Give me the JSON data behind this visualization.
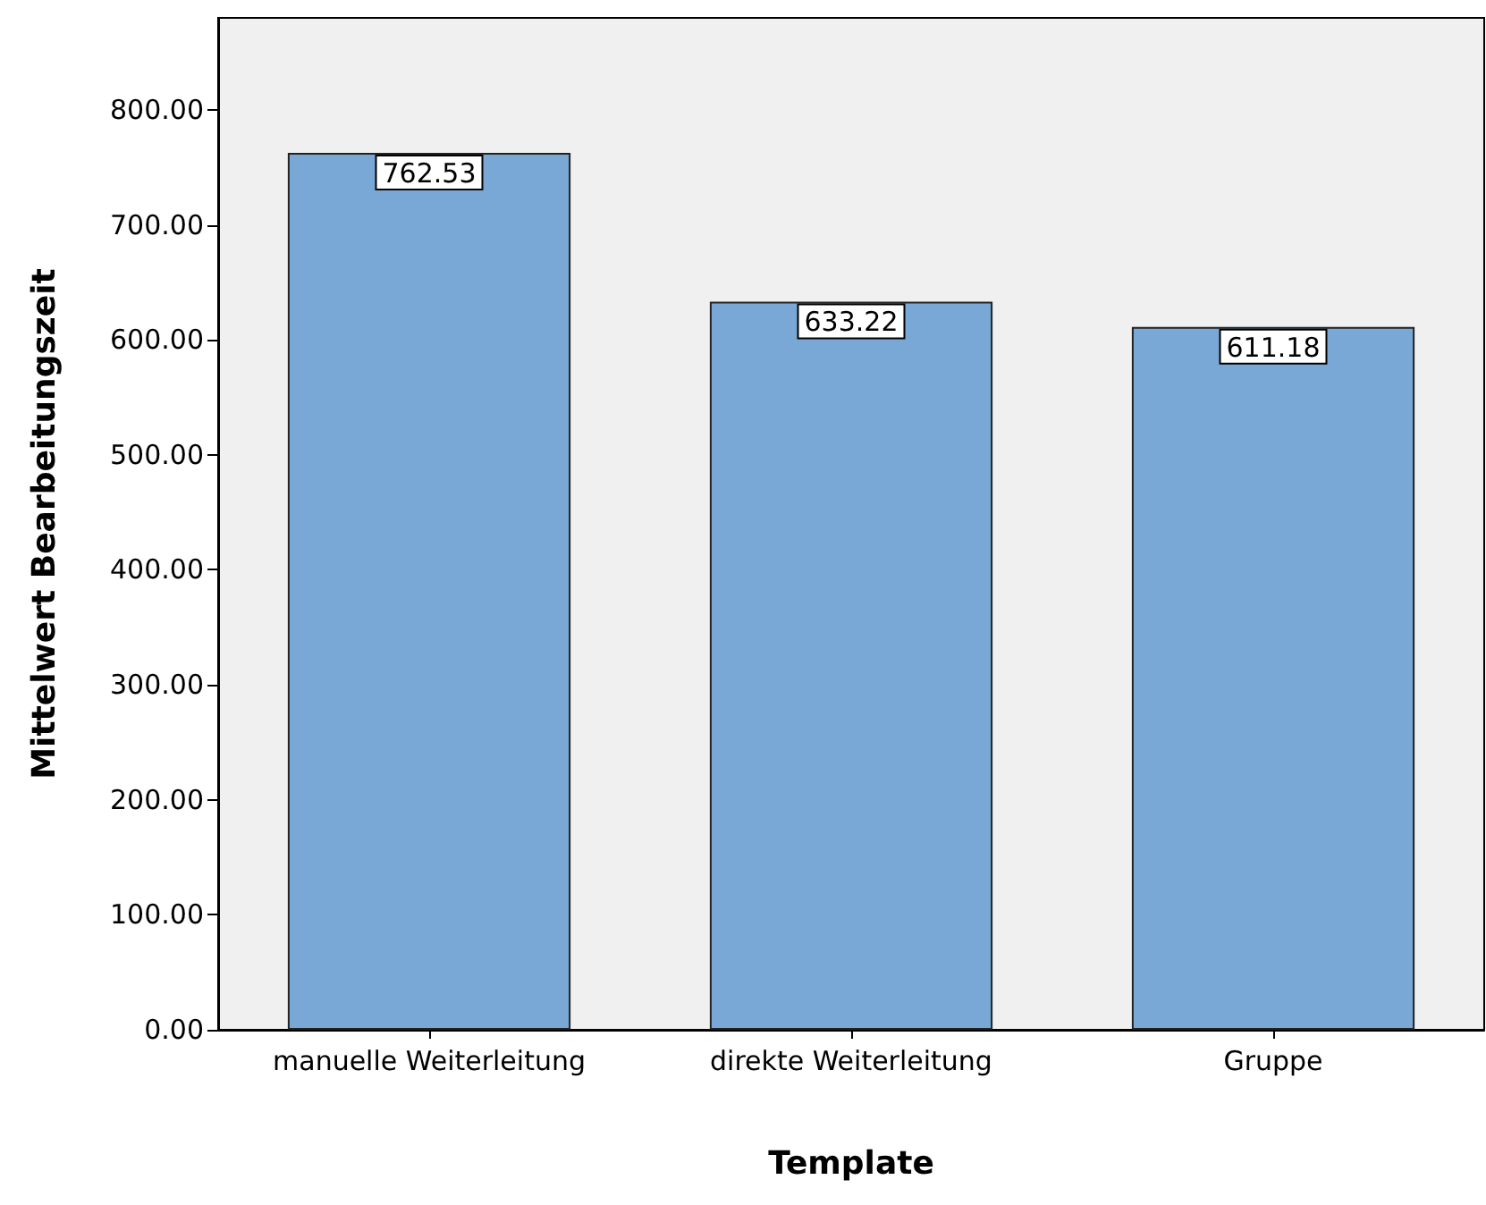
{
  "chart_data": {
    "type": "bar",
    "xlabel": "Template",
    "ylabel": "Mittelwert Bearbeitungszeit",
    "categories": [
      "manuelle Weiterleitung",
      "direkte Weiterleitung",
      "Gruppe"
    ],
    "values": [
      762.53,
      633.22,
      611.18
    ],
    "color": "#79a8d6",
    "ylim": [
      0,
      880
    ],
    "yticks": [
      {
        "value": 0,
        "label": "0.00"
      },
      {
        "value": 100,
        "label": "100.00"
      },
      {
        "value": 200,
        "label": "200.00"
      },
      {
        "value": 300,
        "label": "300.00"
      },
      {
        "value": 400,
        "label": "400.00"
      },
      {
        "value": 500,
        "label": "500.00"
      },
      {
        "value": 600,
        "label": "600.00"
      },
      {
        "value": 700,
        "label": "700.00"
      },
      {
        "value": 800,
        "label": "800.00"
      }
    ],
    "data_labels": true
  }
}
